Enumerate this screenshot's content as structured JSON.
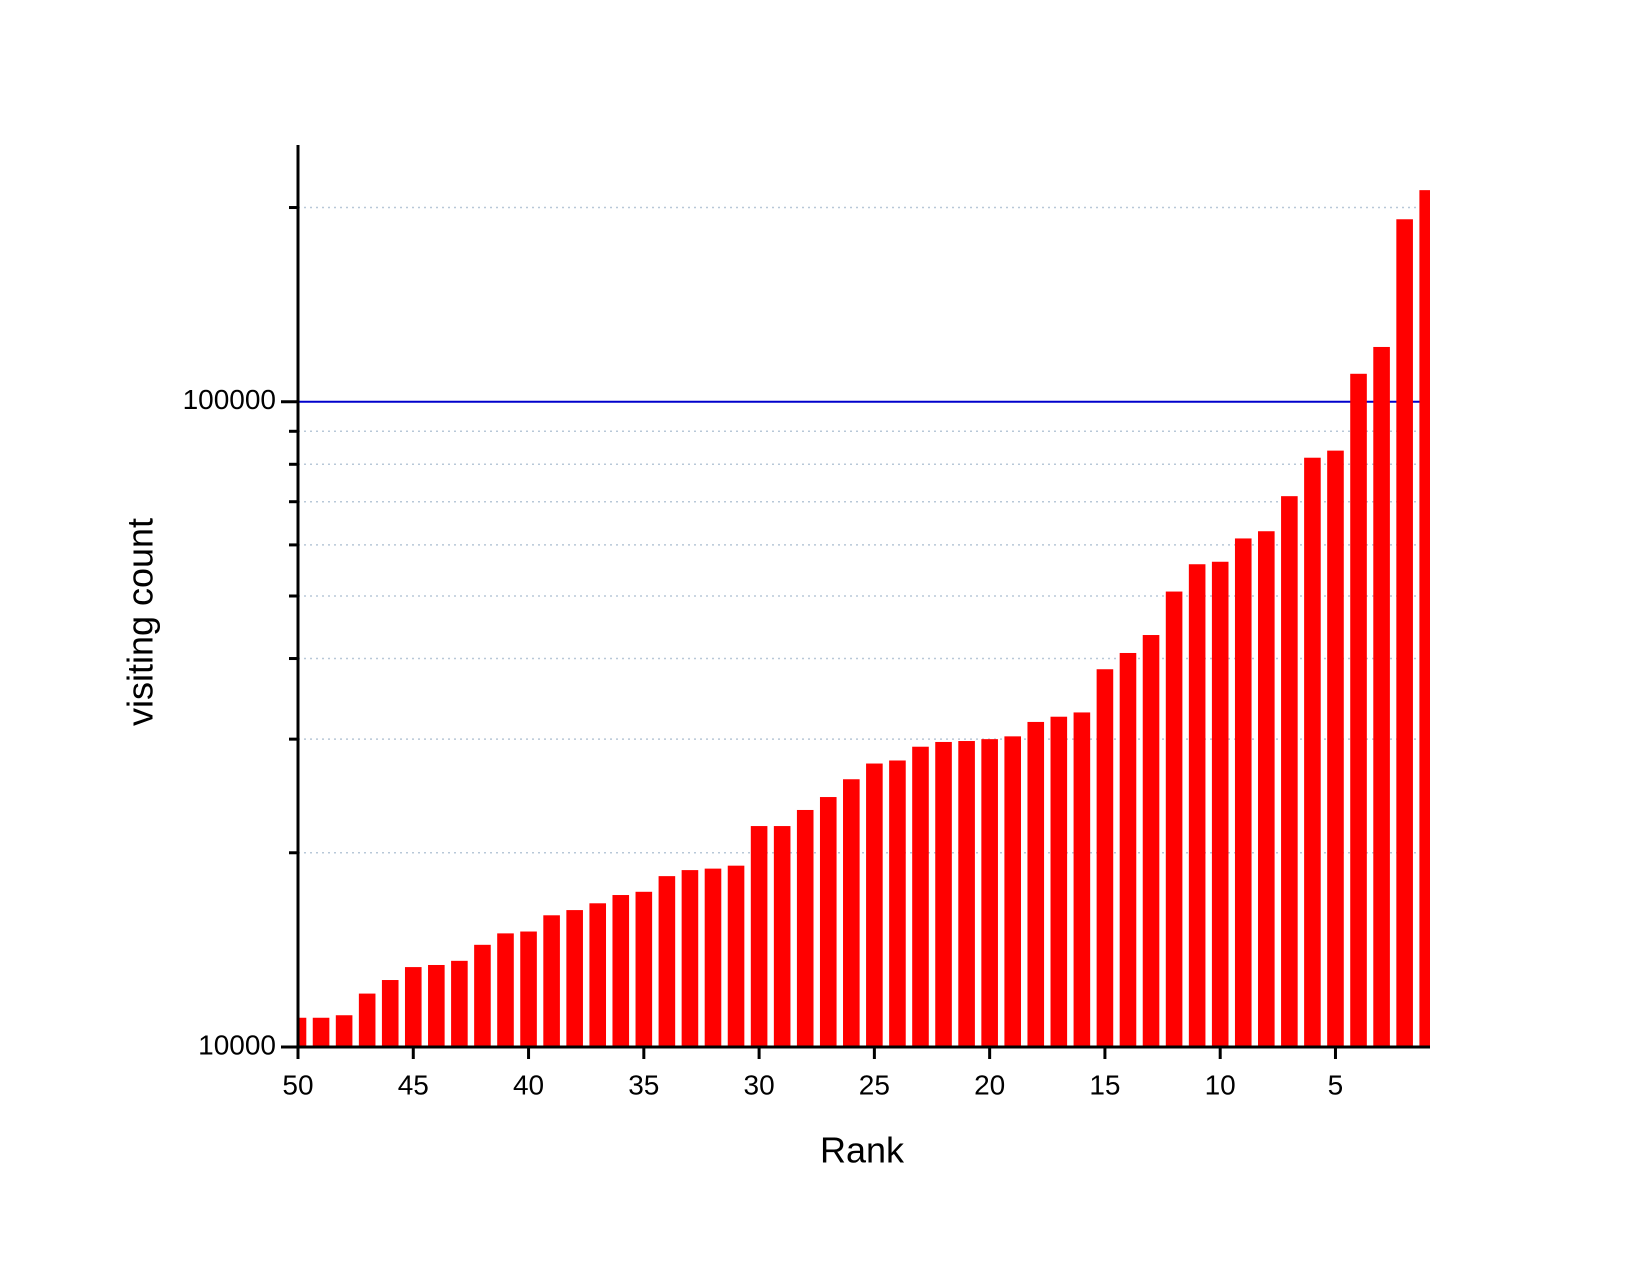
{
  "chart_data": {
    "type": "bar",
    "x_label": "Rank",
    "y_label": "visiting count",
    "x": [
      50,
      49,
      48,
      47,
      46,
      45,
      44,
      43,
      42,
      41,
      40,
      39,
      38,
      37,
      36,
      35,
      34,
      33,
      32,
      31,
      30,
      29,
      28,
      27,
      26,
      25,
      24,
      23,
      22,
      21,
      20,
      19,
      18,
      17,
      16,
      15,
      14,
      13,
      12,
      11,
      10,
      9,
      8,
      7,
      6,
      5,
      4,
      3,
      2,
      1
    ],
    "values": [
      11100,
      11100,
      11200,
      12100,
      12700,
      13300,
      13400,
      13600,
      14400,
      15000,
      15100,
      16000,
      16300,
      16700,
      17200,
      17400,
      18400,
      18800,
      18900,
      19100,
      22000,
      22000,
      23300,
      24400,
      26000,
      27500,
      27800,
      29200,
      29700,
      29800,
      30000,
      30300,
      31900,
      32500,
      33000,
      38500,
      40800,
      43500,
      50800,
      56000,
      56500,
      61400,
      63000,
      71400,
      81900,
      84000,
      110500,
      121600,
      191800,
      212800
    ],
    "color": "#ff0000",
    "xlim": [
      50,
      0.9
    ],
    "xticks": [
      50,
      45,
      40,
      35,
      30,
      25,
      20,
      15,
      10,
      5
    ],
    "ylim": [
      10000,
      250000
    ],
    "ylog": true,
    "yticks": [
      10000,
      100000
    ],
    "yticks_minor": [
      20000,
      30000,
      40000,
      50000,
      60000,
      70000,
      80000,
      90000,
      200000
    ],
    "grid": true,
    "major_grid_color": "#0000cc",
    "minor_grid_color": "#b8c8d8"
  }
}
